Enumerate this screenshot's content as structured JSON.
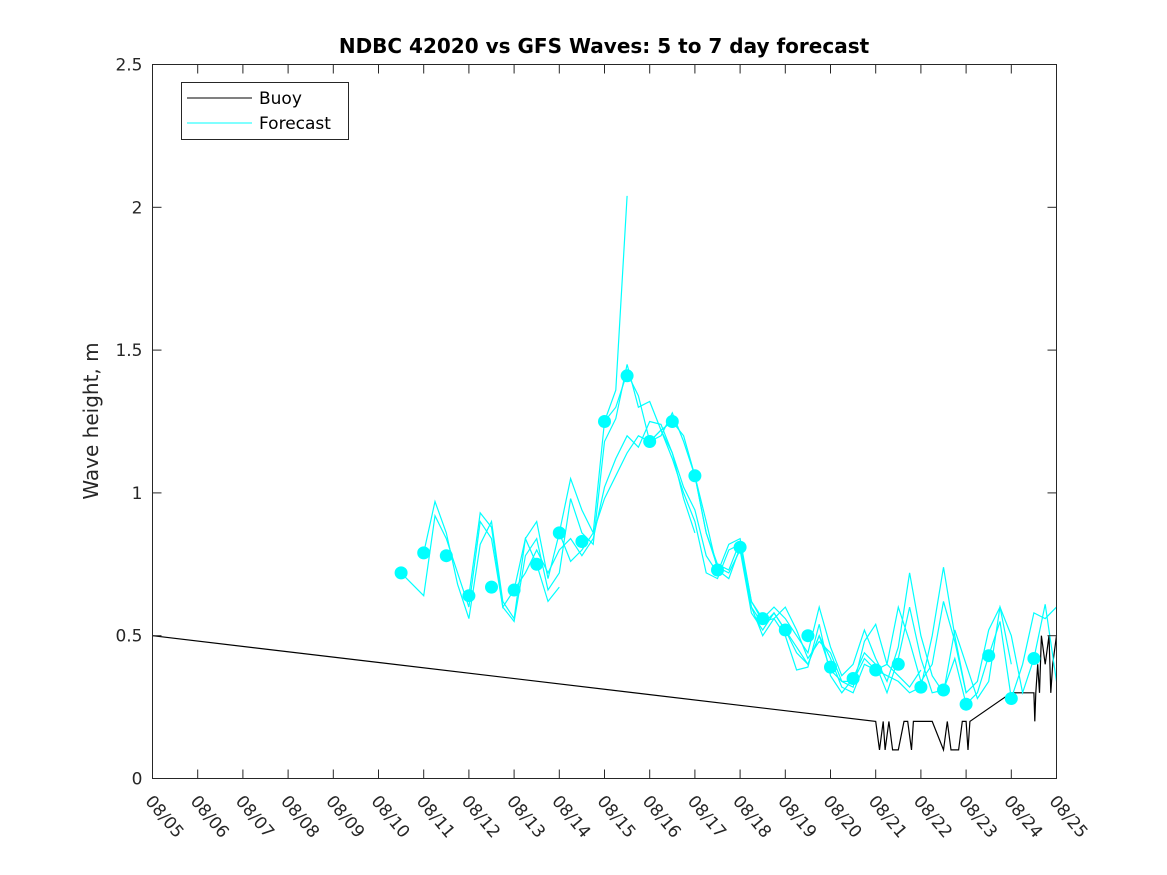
{
  "chart_data": {
    "type": "line",
    "title": "NDBC 42020 vs GFS Waves: 5 to 7 day forecast",
    "xlabel": "",
    "ylabel": "Wave height, m",
    "xlim": [
      "2023-08-05",
      "2023-08-25"
    ],
    "ylim": [
      0,
      2.5
    ],
    "x_tick_labels": [
      "08/05",
      "08/06",
      "08/07",
      "08/08",
      "08/09",
      "08/10",
      "08/11",
      "08/12",
      "08/13",
      "08/14",
      "08/15",
      "08/16",
      "08/17",
      "08/18",
      "08/19",
      "08/20",
      "08/21",
      "08/22",
      "08/23",
      "08/24",
      "08/25"
    ],
    "y_ticks": [
      0,
      0.5,
      1,
      1.5,
      2,
      2.5
    ],
    "y_tick_labels": [
      "0",
      "0.5",
      "1",
      "1.5",
      "2",
      "2.5"
    ],
    "grid": false,
    "legend": {
      "position": "top-left",
      "entries": [
        "Buoy",
        "Forecast"
      ]
    },
    "colors": {
      "buoy": "#000000",
      "forecast": "#00ffff"
    },
    "series": [
      {
        "name": "Buoy",
        "x": [
          "2023-08-05T00:00",
          "2023-08-21T00:00",
          "2023-08-21T02:00",
          "2023-08-21T04:00",
          "2023-08-21T05:00",
          "2023-08-21T07:00",
          "2023-08-21T09:00",
          "2023-08-21T12:00",
          "2023-08-21T15:00",
          "2023-08-21T17:00",
          "2023-08-21T19:00",
          "2023-08-21T20:00",
          "2023-08-21T22:00",
          "2023-08-22T00:00",
          "2023-08-22T06:00",
          "2023-08-22T12:00",
          "2023-08-22T14:00",
          "2023-08-22T16:00",
          "2023-08-22T18:00",
          "2023-08-22T20:00",
          "2023-08-22T22:00",
          "2023-08-23T00:00",
          "2023-08-23T01:00",
          "2023-08-23T02:00",
          "2023-08-24T00:00",
          "2023-08-24T12:00",
          "2023-08-24T12:30",
          "2023-08-24T13:00",
          "2023-08-24T14:00",
          "2023-08-24T15:00",
          "2023-08-24T16:00",
          "2023-08-24T18:00",
          "2023-08-24T20:00",
          "2023-08-24T21:00",
          "2023-08-24T22:00",
          "2023-08-25T00:00"
        ],
        "values": [
          0.5,
          0.2,
          0.1,
          0.2,
          0.1,
          0.2,
          0.1,
          0.1,
          0.2,
          0.2,
          0.1,
          0.2,
          0.2,
          0.2,
          0.2,
          0.1,
          0.2,
          0.1,
          0.1,
          0.1,
          0.2,
          0.2,
          0.1,
          0.2,
          0.3,
          0.3,
          0.2,
          0.3,
          0.4,
          0.3,
          0.5,
          0.4,
          0.5,
          0.3,
          0.4,
          0.5
        ]
      },
      {
        "name": "",
        "x": [
          "2023-08-10T12:00",
          "2023-08-11T00:00",
          "2023-08-11T06:00",
          "2023-08-11T12:00",
          "2023-08-11T18:00",
          "2023-08-12T00:00",
          "2023-08-12T06:00",
          "2023-08-12T12:00",
          "2023-08-12T18:00",
          "2023-08-13T00:00",
          "2023-08-13T06:00",
          "2023-08-13T12:00",
          "2023-08-13T18:00",
          "2023-08-14T00:00"
        ],
        "values": [
          0.72,
          0.64,
          0.92,
          0.84,
          0.72,
          0.6,
          0.9,
          0.84,
          0.6,
          0.66,
          0.84,
          0.75,
          0.62,
          0.67
        ]
      },
      {
        "name": "",
        "x": [
          "2023-08-11T00:00",
          "2023-08-11T06:00",
          "2023-08-11T12:00",
          "2023-08-11T18:00",
          "2023-08-12T00:00",
          "2023-08-12T06:00",
          "2023-08-12T12:00",
          "2023-08-12T18:00",
          "2023-08-13T00:00",
          "2023-08-13T06:00",
          "2023-08-13T12:00",
          "2023-08-13T18:00",
          "2023-08-14T00:00",
          "2023-08-14T06:00",
          "2023-08-14T12:00",
          "2023-08-14T18:00",
          "2023-08-15T00:00",
          "2023-08-15T06:00",
          "2023-08-15T12:00"
        ],
        "values": [
          0.79,
          0.97,
          0.86,
          0.68,
          0.56,
          0.82,
          0.9,
          0.62,
          0.56,
          0.84,
          0.9,
          0.7,
          0.86,
          1.05,
          0.94,
          0.86,
          1.25,
          1.36,
          2.04
        ]
      },
      {
        "name": "",
        "x": [
          "2023-08-12T00:00",
          "2023-08-12T06:00",
          "2023-08-12T12:00",
          "2023-08-12T18:00",
          "2023-08-13T00:00",
          "2023-08-13T06:00",
          "2023-08-13T12:00",
          "2023-08-13T18:00",
          "2023-08-14T00:00",
          "2023-08-14T06:00",
          "2023-08-14T12:00",
          "2023-08-14T18:00",
          "2023-08-15T00:00",
          "2023-08-15T06:00",
          "2023-08-15T12:00",
          "2023-08-15T18:00",
          "2023-08-16T00:00",
          "2023-08-16T06:00",
          "2023-08-16T12:00",
          "2023-08-16T18:00",
          "2023-08-17T00:00"
        ],
        "values": [
          0.64,
          0.93,
          0.88,
          0.6,
          0.55,
          0.78,
          0.84,
          0.66,
          0.72,
          0.98,
          0.86,
          0.82,
          1.18,
          1.26,
          1.45,
          1.3,
          1.32,
          1.22,
          1.14,
          0.98,
          0.86
        ]
      },
      {
        "name": "",
        "x": [
          "2023-08-13T00:00",
          "2023-08-13T06:00",
          "2023-08-13T12:00",
          "2023-08-13T18:00",
          "2023-08-14T00:00",
          "2023-08-14T06:00",
          "2023-08-14T12:00",
          "2023-08-14T18:00",
          "2023-08-15T00:00",
          "2023-08-15T06:00",
          "2023-08-15T12:00",
          "2023-08-15T18:00",
          "2023-08-16T00:00",
          "2023-08-16T06:00",
          "2023-08-16T12:00",
          "2023-08-16T18:00",
          "2023-08-17T00:00",
          "2023-08-17T06:00",
          "2023-08-17T12:00",
          "2023-08-17T18:00",
          "2023-08-18T00:00",
          "2023-08-18T06:00",
          "2023-08-18T12:00",
          "2023-08-18T18:00",
          "2023-08-19T00:00",
          "2023-08-19T06:00",
          "2023-08-19T12:00",
          "2023-08-19T18:00",
          "2023-08-20T00:00",
          "2023-08-20T06:00",
          "2023-08-20T12:00",
          "2023-08-20T18:00",
          "2023-08-21T00:00",
          "2023-08-21T06:00",
          "2023-08-21T12:00",
          "2023-08-21T18:00",
          "2023-08-22T00:00"
        ],
        "values": [
          0.66,
          0.72,
          0.8,
          0.72,
          0.8,
          0.84,
          0.78,
          0.84,
          1.02,
          1.12,
          1.2,
          1.16,
          1.25,
          1.24,
          1.14,
          1.02,
          0.94,
          0.78,
          0.72,
          0.82,
          0.84,
          0.62,
          0.55,
          0.56,
          0.6,
          0.52,
          0.42,
          0.48,
          0.44,
          0.34,
          0.32,
          0.48,
          0.54,
          0.4,
          0.36,
          0.32,
          0.38
        ]
      },
      {
        "name": "",
        "x": [
          "2023-08-14T00:00",
          "2023-08-14T06:00",
          "2023-08-14T12:00",
          "2023-08-14T18:00",
          "2023-08-15T00:00",
          "2023-08-15T06:00",
          "2023-08-15T12:00",
          "2023-08-15T18:00",
          "2023-08-16T00:00",
          "2023-08-16T06:00",
          "2023-08-16T12:00",
          "2023-08-16T18:00",
          "2023-08-17T00:00",
          "2023-08-17T06:00",
          "2023-08-17T12:00",
          "2023-08-17T18:00",
          "2023-08-18T00:00",
          "2023-08-18T06:00",
          "2023-08-18T12:00",
          "2023-08-18T18:00",
          "2023-08-19T00:00",
          "2023-08-19T06:00",
          "2023-08-19T12:00",
          "2023-08-19T18:00",
          "2023-08-20T00:00",
          "2023-08-20T06:00",
          "2023-08-20T12:00",
          "2023-08-20T18:00",
          "2023-08-21T00:00",
          "2023-08-21T06:00",
          "2023-08-21T12:00",
          "2023-08-21T18:00",
          "2023-08-22T00:00",
          "2023-08-22T06:00",
          "2023-08-22T12:00",
          "2023-08-22T18:00",
          "2023-08-23T00:00"
        ],
        "values": [
          0.86,
          0.76,
          0.8,
          0.86,
          0.98,
          1.06,
          1.14,
          1.2,
          1.18,
          1.22,
          1.12,
          1.0,
          0.9,
          0.72,
          0.7,
          0.8,
          0.82,
          0.6,
          0.54,
          0.58,
          0.52,
          0.46,
          0.4,
          0.5,
          0.42,
          0.32,
          0.3,
          0.4,
          0.38,
          0.36,
          0.34,
          0.3,
          0.32,
          0.5,
          0.74,
          0.5,
          0.3
        ]
      },
      {
        "name": "",
        "x": [
          "2023-08-15T00:00",
          "2023-08-15T06:00",
          "2023-08-15T12:00",
          "2023-08-15T18:00",
          "2023-08-16T00:00",
          "2023-08-16T06:00",
          "2023-08-16T12:00",
          "2023-08-16T18:00",
          "2023-08-17T00:00",
          "2023-08-17T06:00",
          "2023-08-17T12:00",
          "2023-08-17T18:00",
          "2023-08-18T00:00",
          "2023-08-18T06:00",
          "2023-08-18T12:00",
          "2023-08-18T18:00",
          "2023-08-19T00:00",
          "2023-08-19T06:00",
          "2023-08-19T12:00",
          "2023-08-19T18:00",
          "2023-08-20T00:00",
          "2023-08-20T06:00",
          "2023-08-20T12:00",
          "2023-08-20T18:00",
          "2023-08-21T00:00",
          "2023-08-21T06:00",
          "2023-08-21T12:00",
          "2023-08-21T18:00",
          "2023-08-22T00:00",
          "2023-08-22T06:00",
          "2023-08-22T12:00",
          "2023-08-22T18:00",
          "2023-08-23T00:00",
          "2023-08-23T06:00",
          "2023-08-23T12:00",
          "2023-08-23T18:00",
          "2023-08-24T00:00"
        ],
        "values": [
          1.25,
          1.3,
          1.42,
          1.34,
          1.18,
          1.2,
          1.28,
          1.18,
          1.06,
          0.86,
          0.74,
          0.72,
          0.8,
          0.58,
          0.52,
          0.58,
          0.52,
          0.44,
          0.4,
          0.5,
          0.38,
          0.34,
          0.34,
          0.42,
          0.38,
          0.4,
          0.6,
          0.48,
          0.34,
          0.4,
          0.62,
          0.48,
          0.3,
          0.34,
          0.52,
          0.6,
          0.4
        ]
      },
      {
        "name": "",
        "x": [
          "2023-08-16T00:00",
          "2023-08-16T06:00",
          "2023-08-16T12:00",
          "2023-08-16T18:00",
          "2023-08-17T00:00",
          "2023-08-17T06:00",
          "2023-08-17T12:00",
          "2023-08-17T18:00",
          "2023-08-18T00:00",
          "2023-08-18T06:00",
          "2023-08-18T12:00",
          "2023-08-18T18:00",
          "2023-08-19T00:00",
          "2023-08-19T06:00",
          "2023-08-19T12:00",
          "2023-08-19T18:00",
          "2023-08-20T00:00",
          "2023-08-20T06:00",
          "2023-08-20T12:00",
          "2023-08-20T18:00",
          "2023-08-21T00:00",
          "2023-08-21T06:00",
          "2023-08-21T12:00",
          "2023-08-21T18:00",
          "2023-08-22T00:00",
          "2023-08-22T06:00",
          "2023-08-22T12:00",
          "2023-08-22T18:00",
          "2023-08-23T00:00",
          "2023-08-23T06:00",
          "2023-08-23T12:00",
          "2023-08-23T18:00",
          "2023-08-24T00:00",
          "2023-08-24T06:00",
          "2023-08-24T12:00",
          "2023-08-24T18:00",
          "2023-08-25T00:00"
        ],
        "values": [
          1.18,
          1.22,
          1.25,
          1.2,
          1.06,
          0.9,
          0.73,
          0.7,
          0.81,
          0.6,
          0.5,
          0.56,
          0.5,
          0.38,
          0.39,
          0.54,
          0.36,
          0.3,
          0.35,
          0.44,
          0.4,
          0.3,
          0.42,
          0.6,
          0.42,
          0.3,
          0.31,
          0.42,
          0.26,
          0.3,
          0.43,
          0.55,
          0.28,
          0.4,
          0.58,
          0.56,
          0.6
        ]
      },
      {
        "name": "",
        "x": [
          "2023-08-17T00:00",
          "2023-08-17T06:00",
          "2023-08-17T12:00",
          "2023-08-17T18:00",
          "2023-08-18T00:00",
          "2023-08-18T06:00",
          "2023-08-18T12:00",
          "2023-08-18T18:00",
          "2023-08-19T00:00",
          "2023-08-19T06:00",
          "2023-08-19T12:00",
          "2023-08-19T18:00",
          "2023-08-20T00:00",
          "2023-08-20T06:00",
          "2023-08-20T12:00",
          "2023-08-20T18:00",
          "2023-08-21T00:00",
          "2023-08-21T06:00",
          "2023-08-21T12:00",
          "2023-08-21T18:00",
          "2023-08-22T00:00",
          "2023-08-22T06:00",
          "2023-08-22T12:00",
          "2023-08-22T18:00",
          "2023-08-23T00:00",
          "2023-08-23T06:00",
          "2023-08-23T12:00",
          "2023-08-23T18:00",
          "2023-08-24T00:00",
          "2023-08-24T06:00",
          "2023-08-24T12:00",
          "2023-08-24T18:00",
          "2023-08-25T00:00"
        ],
        "values": [
          1.06,
          0.86,
          0.75,
          0.73,
          0.83,
          0.62,
          0.56,
          0.6,
          0.56,
          0.5,
          0.44,
          0.6,
          0.46,
          0.36,
          0.4,
          0.52,
          0.42,
          0.34,
          0.46,
          0.72,
          0.5,
          0.36,
          0.3,
          0.52,
          0.4,
          0.28,
          0.34,
          0.6,
          0.5,
          0.3,
          0.42,
          0.61,
          0.34
        ]
      }
    ],
    "markers": {
      "x": [
        "2023-08-10T12:00",
        "2023-08-11T00:00",
        "2023-08-11T12:00",
        "2023-08-12T00:00",
        "2023-08-12T12:00",
        "2023-08-13T00:00",
        "2023-08-13T12:00",
        "2023-08-14T00:00",
        "2023-08-14T12:00",
        "2023-08-15T00:00",
        "2023-08-15T12:00",
        "2023-08-16T00:00",
        "2023-08-16T12:00",
        "2023-08-17T00:00",
        "2023-08-17T12:00",
        "2023-08-18T00:00",
        "2023-08-18T12:00",
        "2023-08-19T00:00",
        "2023-08-19T12:00",
        "2023-08-20T00:00",
        "2023-08-20T12:00",
        "2023-08-21T00:00",
        "2023-08-21T12:00",
        "2023-08-22T00:00",
        "2023-08-22T12:00",
        "2023-08-23T00:00",
        "2023-08-23T12:00",
        "2023-08-24T00:00",
        "2023-08-24T12:00"
      ],
      "values": [
        0.72,
        0.79,
        0.78,
        0.64,
        0.67,
        0.66,
        0.75,
        0.86,
        0.83,
        1.25,
        1.41,
        1.18,
        1.25,
        1.06,
        0.73,
        0.81,
        0.56,
        0.52,
        0.5,
        0.39,
        0.35,
        0.38,
        0.4,
        0.32,
        0.31,
        0.26,
        0.43,
        0.28,
        0.42
      ]
    }
  }
}
